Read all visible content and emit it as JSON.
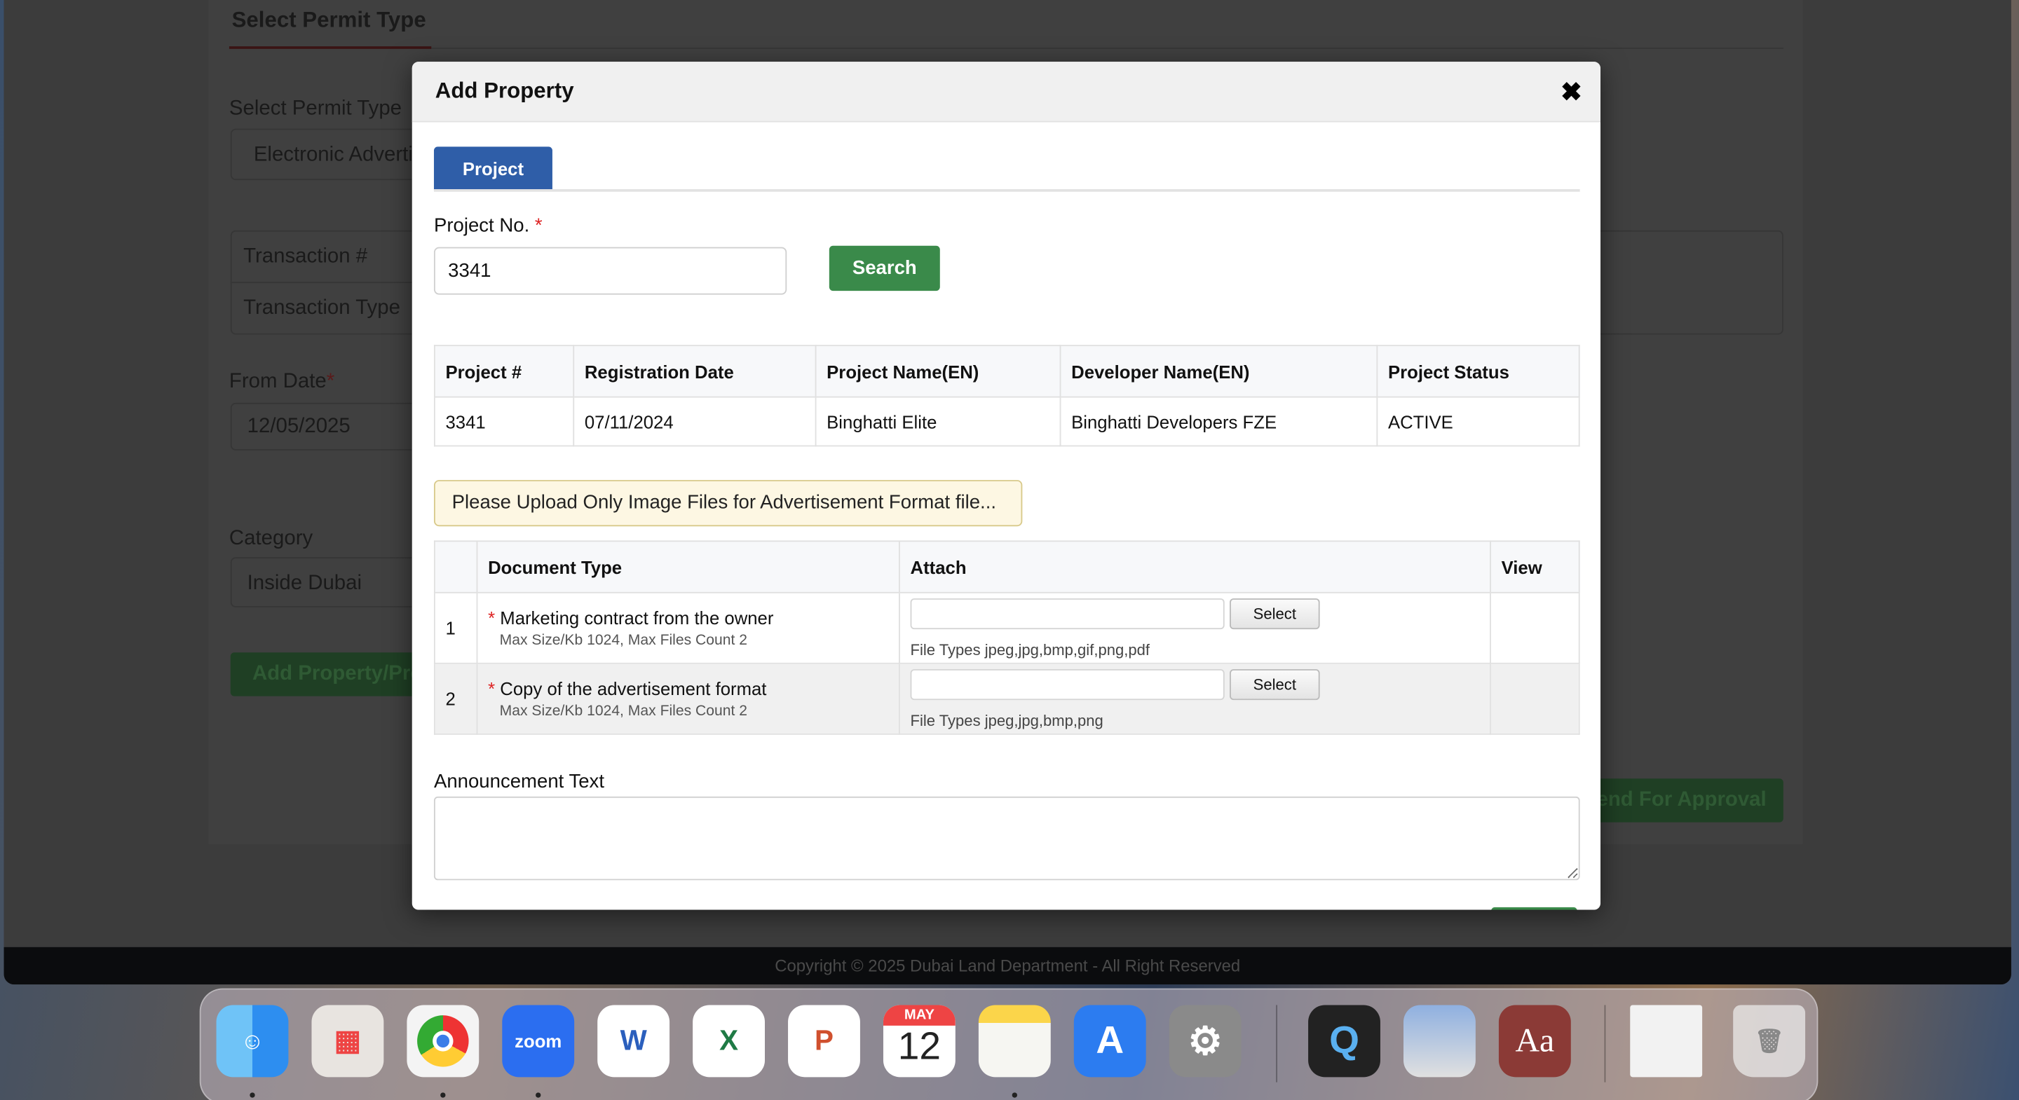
{
  "background_page": {
    "section_title": "Select Permit Type",
    "permit_type_label": "Select Permit Type",
    "permit_type_value": "Electronic Advertis",
    "transaction_number_label": "Transaction #",
    "transaction_type_label": "Transaction Type",
    "from_date_label": "From Date",
    "from_date_value": "12/05/2025",
    "category_label": "Category",
    "category_value": "Inside Dubai",
    "add_property_button": "Add Property/Pro",
    "send_for_approval_button": "end For Approval",
    "footer": "Copyright © 2025 Dubai Land Department - All Right Reserved"
  },
  "modal": {
    "title": "Add Property",
    "close_icon": "close-icon",
    "tab": "Project",
    "project_no_label": "Project No.",
    "required_mark": "*",
    "project_no_value": "3341",
    "search_button": "Search",
    "project_table": {
      "headers": [
        "Project #",
        "Registration Date",
        "Project Name(EN)",
        "Developer Name(EN)",
        "Project Status"
      ],
      "rows": [
        [
          "3341",
          "07/11/2024",
          "Binghatti Elite",
          "Binghatti Developers FZE",
          "ACTIVE"
        ]
      ]
    },
    "alert": "Please Upload Only Image Files for Advertisement Format file...",
    "documents_table": {
      "headers": [
        "",
        "Document Type",
        "Attach",
        "View"
      ],
      "rows": [
        {
          "index": "1",
          "name": "Marketing contract from the owner",
          "limits": "Max Size/Kb 1024, Max Files Count 2",
          "select": "Select",
          "file_types": "File Types jpeg,jpg,bmp,gif,png,pdf"
        },
        {
          "index": "2",
          "name": "Copy of the advertisement format",
          "limits": "Max Size/Kb 1024, Max Files Count 2",
          "select": "Select",
          "file_types": "File Types jpeg,jpg,bmp,png"
        }
      ]
    },
    "announcement_label": "Announcement Text",
    "announcement_value": ""
  },
  "dock": {
    "apps": [
      "Finder",
      "Launchpad",
      "Chrome",
      "zoom",
      "W",
      "X",
      "P",
      "Calendar",
      "Notes",
      "App Store",
      "System Settings",
      "QuickTime",
      "Preview",
      "Aa",
      "Document",
      "Trash"
    ],
    "calendar_month": "MAY",
    "calendar_day": "12"
  },
  "colors": {
    "primary_tab": "#2f5ea8",
    "search_green": "#3a8a4a",
    "alert_bg": "#fdf7e3",
    "required": "#dd2222"
  }
}
